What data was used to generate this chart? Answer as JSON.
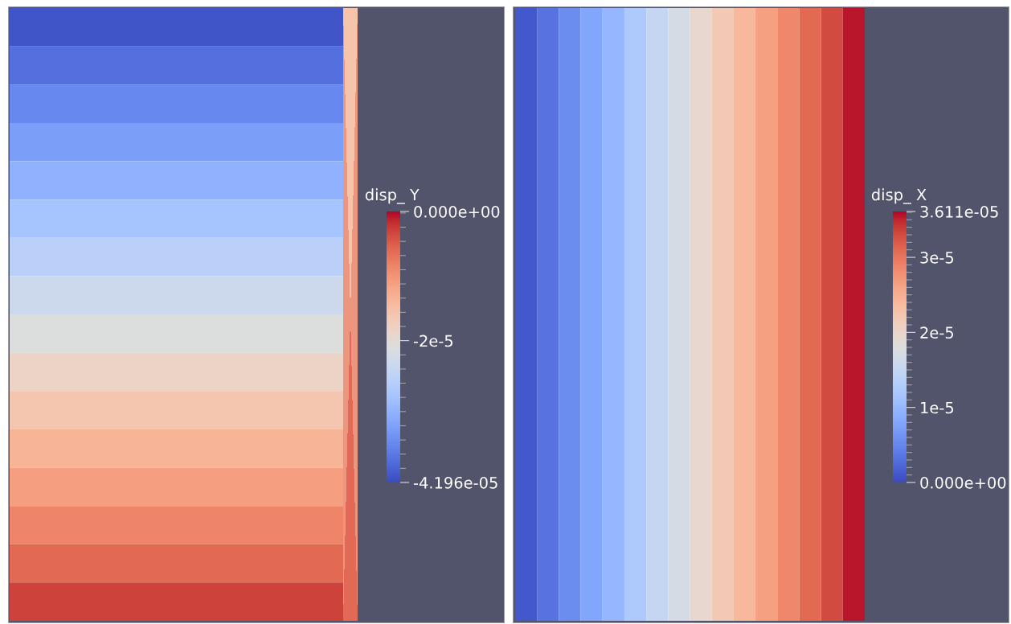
{
  "chart_data": [
    {
      "type": "heatmap",
      "categories": [
        null
      ],
      "y_categories": [
        null,
        null,
        null,
        null,
        null,
        null,
        null,
        null,
        null,
        null,
        null,
        null,
        null,
        null,
        null,
        null
      ],
      "cells": [
        [
          -4.1e-05
        ],
        [
          -3.85e-05
        ],
        [
          -3.6e-05
        ],
        [
          -3.35e-05
        ],
        [
          -3.1e-05
        ],
        [
          -2.85e-05
        ],
        [
          -2.6e-05
        ],
        [
          -2.35e-05
        ],
        [
          -2.1e-05
        ],
        [
          -1.85e-05
        ],
        [
          -1.6e-05
        ],
        [
          -1.35e-05
        ],
        [
          -1.1e-05
        ],
        [
          -8.5e-06
        ],
        [
          -6e-06
        ],
        [
          -3e-06
        ]
      ],
      "clabel": "disp_ Y",
      "clim": [
        -4.196e-05,
        0
      ],
      "cticks": [
        {
          "value": 0,
          "label": "0.000e+00"
        },
        {
          "value": -2e-05,
          "label": "-2e-5"
        },
        {
          "value": -4.196e-05,
          "label": "-4.196e-05"
        }
      ],
      "tick_labels": false
    },
    {
      "type": "heatmap",
      "categories": [
        null,
        null,
        null,
        null,
        null,
        null,
        null,
        null,
        null,
        null,
        null,
        null,
        null,
        null,
        null,
        null
      ],
      "y_categories": [
        null
      ],
      "cells": [
        [
          1e-06,
          3.3e-06,
          5.6e-06,
          8e-06,
          1e-05,
          1.25e-05,
          1.5e-05,
          1.7e-05,
          1.95e-05,
          2.2e-05,
          2.4e-05,
          2.65e-05,
          2.85e-05,
          3.1e-05,
          3.3e-05,
          3.55e-05
        ]
      ],
      "clabel": "disp_ X",
      "clim": [
        0,
        3.611e-05
      ],
      "cticks": [
        {
          "value": 3.611e-05,
          "label": "3.611e-05"
        },
        {
          "value": 3e-05,
          "label": "3e-5"
        },
        {
          "value": 2e-05,
          "label": "2e-5"
        },
        {
          "value": 1e-05,
          "label": "1e-5"
        },
        {
          "value": 0,
          "label": "0.000e+00"
        }
      ],
      "tick_labels": false
    }
  ]
}
